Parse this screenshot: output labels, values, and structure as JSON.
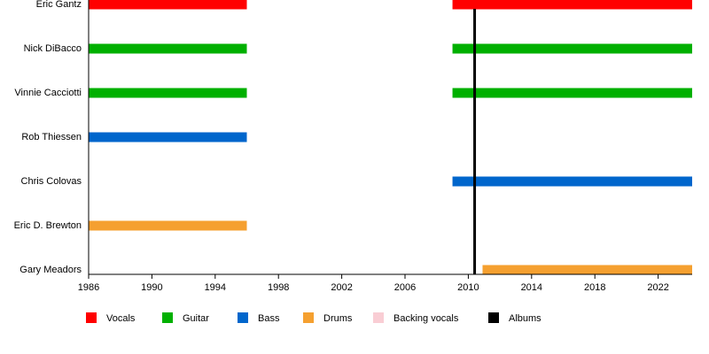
{
  "chart_data": {
    "type": "timeline",
    "categories": [
      "Eric Gantz",
      "Nick DiBacco",
      "Vinnie Cacciotti",
      "Rob Thiessen",
      "Chris Colovas",
      "Eric D. Brewton",
      "Gary Meadors"
    ],
    "xlim": [
      1986,
      2024.15
    ],
    "xticks": [
      1986,
      1990,
      1994,
      1998,
      2002,
      2006,
      2010,
      2014,
      2018,
      2022
    ],
    "series": [
      {
        "name": "Vocals",
        "color": "#ff0000",
        "bars": [
          {
            "category": "Eric Gantz",
            "start": 1986,
            "end": 1996
          },
          {
            "category": "Eric Gantz",
            "start": 2009,
            "end": 2024.15
          }
        ]
      },
      {
        "name": "Guitar",
        "color": "#00b000",
        "bars": [
          {
            "category": "Nick DiBacco",
            "start": 1986,
            "end": 1996
          },
          {
            "category": "Nick DiBacco",
            "start": 2009,
            "end": 2024.15
          },
          {
            "category": "Vinnie Cacciotti",
            "start": 1986,
            "end": 1996
          },
          {
            "category": "Vinnie Cacciotti",
            "start": 2009,
            "end": 2024.15
          }
        ]
      },
      {
        "name": "Bass",
        "color": "#0066cc",
        "bars": [
          {
            "category": "Rob Thiessen",
            "start": 1986,
            "end": 1996
          },
          {
            "category": "Chris Colovas",
            "start": 2009,
            "end": 2024.15
          }
        ]
      },
      {
        "name": "Drums",
        "color": "#f5a030",
        "bars": [
          {
            "category": "Eric D. Brewton",
            "start": 1986,
            "end": 1996
          },
          {
            "category": "Gary Meadors",
            "start": 2010.9,
            "end": 2024.15
          }
        ]
      },
      {
        "name": "Backing vocals",
        "color": "#f9cdd4",
        "bars": []
      },
      {
        "name": "Albums",
        "color": "#000000",
        "lines": [
          2010.4
        ]
      }
    ]
  }
}
